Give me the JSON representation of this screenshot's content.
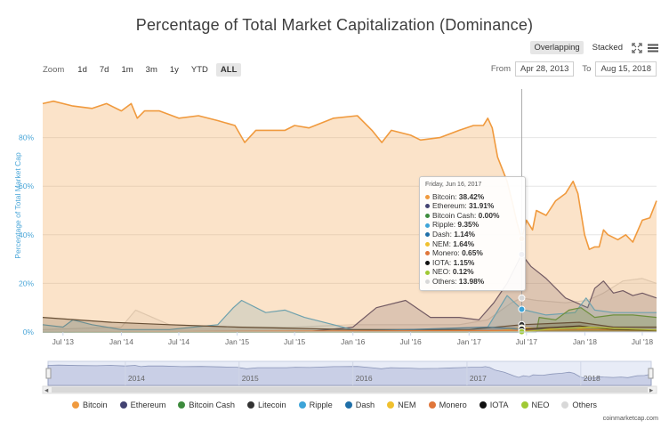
{
  "title": "Percentage of Total Market Capitalization (Dominance)",
  "modes": [
    {
      "label": "Overlapping",
      "active": true
    },
    {
      "label": "Stacked",
      "active": false
    }
  ],
  "zoom": {
    "label": "Zoom",
    "buttons": [
      {
        "label": "1d",
        "active": false
      },
      {
        "label": "7d",
        "active": false
      },
      {
        "label": "1m",
        "active": false
      },
      {
        "label": "3m",
        "active": false
      },
      {
        "label": "1y",
        "active": false
      },
      {
        "label": "YTD",
        "active": false
      },
      {
        "label": "ALL",
        "active": true
      }
    ]
  },
  "range": {
    "from_label": "From",
    "from_value": "Apr 28, 2013",
    "to_label": "To",
    "to_value": "Aug 15, 2018"
  },
  "colors": {
    "Bitcoin": "#f09a3e",
    "Ethereum": "#434372",
    "Bitcoin Cash": "#3d8b3d",
    "Litecoin": "#333333",
    "Ripple": "#3da4d8",
    "Dash": "#1f6fa8",
    "NEM": "#f0c02e",
    "Monero": "#e0763a",
    "IOTA": "#111111",
    "NEO": "#a0c934",
    "Others": "#d8d8d8"
  },
  "tooltip": {
    "date": "Friday, Jun 16, 2017",
    "rows": [
      {
        "name": "Bitcoin",
        "value": "38.42%"
      },
      {
        "name": "Ethereum",
        "value": "31.91%"
      },
      {
        "name": "Bitcoin Cash",
        "value": "0.00%"
      },
      {
        "name": "Ripple",
        "value": "9.35%"
      },
      {
        "name": "Dash",
        "value": "1.14%"
      },
      {
        "name": "NEM",
        "value": "1.64%"
      },
      {
        "name": "Monero",
        "value": "0.65%"
      },
      {
        "name": "IOTA",
        "value": "1.15%"
      },
      {
        "name": "NEO",
        "value": "0.12%"
      },
      {
        "name": "Others",
        "value": "13.98%"
      }
    ]
  },
  "navigator": {
    "years": [
      "2014",
      "2015",
      "2016",
      "2017",
      "2018"
    ]
  },
  "watermark": "coinmarketcap.com",
  "chart_data": {
    "type": "area",
    "ylabel": "Percentage of Total Market Cap",
    "ylim": [
      0,
      100
    ],
    "yticks": [
      0,
      20,
      40,
      60,
      80
    ],
    "ytick_labels": [
      "0%",
      "20%",
      "40%",
      "60%",
      "80%"
    ],
    "xlim": [
      "2013-04-28",
      "2018-08-15"
    ],
    "xticks": [
      {
        "date": "2013-07-01",
        "label": "Jul '13"
      },
      {
        "date": "2014-01-01",
        "label": "Jan '14"
      },
      {
        "date": "2014-07-01",
        "label": "Jul '14"
      },
      {
        "date": "2015-01-01",
        "label": "Jan '15"
      },
      {
        "date": "2015-07-01",
        "label": "Jul '15"
      },
      {
        "date": "2016-01-01",
        "label": "Jan '16"
      },
      {
        "date": "2016-07-01",
        "label": "Jul '16"
      },
      {
        "date": "2017-01-01",
        "label": "Jan '17"
      },
      {
        "date": "2017-07-01",
        "label": "Jul '17"
      },
      {
        "date": "2018-01-01",
        "label": "Jan '18"
      },
      {
        "date": "2018-07-01",
        "label": "Jul '18"
      }
    ],
    "crosshair_date": "2017-06-16",
    "legend_position": "bottom",
    "series": [
      {
        "name": "Others",
        "x": [
          "2013-04-28",
          "2014-01-01",
          "2014-02-15",
          "2014-06-01",
          "2015-01-01",
          "2015-07-01",
          "2016-01-01",
          "2016-06-01",
          "2016-12-01",
          "2017-03-01",
          "2017-05-15",
          "2017-06-16",
          "2017-08-01",
          "2017-11-01",
          "2018-01-10",
          "2018-03-01",
          "2018-05-01",
          "2018-07-01",
          "2018-08-15"
        ],
        "y": [
          1,
          2,
          9,
          3,
          2,
          2,
          3,
          3,
          3,
          5,
          12,
          14,
          13,
          12,
          13,
          16,
          21,
          22,
          20
        ]
      },
      {
        "name": "Ethereum",
        "x": [
          "2013-04-28",
          "2015-08-01",
          "2016-01-01",
          "2016-03-15",
          "2016-06-15",
          "2016-09-01",
          "2016-12-01",
          "2017-02-01",
          "2017-03-20",
          "2017-05-01",
          "2017-06-16",
          "2017-07-15",
          "2017-09-01",
          "2017-11-01",
          "2018-01-10",
          "2018-02-01",
          "2018-03-01",
          "2018-04-01",
          "2018-05-01",
          "2018-06-01",
          "2018-07-01",
          "2018-08-15"
        ],
        "y": [
          0,
          0,
          2,
          10,
          13,
          6,
          6,
          5,
          12,
          20,
          31.9,
          27,
          22,
          14,
          10,
          18,
          21,
          16,
          17,
          15,
          16,
          14
        ]
      },
      {
        "name": "Ripple",
        "x": [
          "2013-04-28",
          "2013-07-01",
          "2013-08-01",
          "2013-10-01",
          "2014-01-01",
          "2014-06-01",
          "2014-11-01",
          "2014-12-20",
          "2015-01-15",
          "2015-04-01",
          "2015-06-01",
          "2015-08-01",
          "2016-01-01",
          "2016-07-01",
          "2017-01-01",
          "2017-03-01",
          "2017-05-01",
          "2017-06-16",
          "2017-09-01",
          "2017-12-01",
          "2018-01-05",
          "2018-02-01",
          "2018-04-01",
          "2018-08-15"
        ],
        "y": [
          3,
          2,
          5,
          3,
          1,
          1,
          3,
          10,
          13,
          8,
          9,
          6,
          1,
          1,
          1,
          2,
          15,
          9.35,
          7,
          8,
          14,
          9,
          8,
          8
        ]
      },
      {
        "name": "Bitcoin Cash",
        "x": [
          "2013-04-28",
          "2017-08-01",
          "2017-08-10",
          "2017-10-01",
          "2017-11-12",
          "2017-12-20",
          "2018-02-01",
          "2018-04-01",
          "2018-06-01",
          "2018-08-15"
        ],
        "y": [
          0,
          0,
          6,
          5,
          9,
          10,
          6,
          7,
          7,
          6
        ]
      },
      {
        "name": "Litecoin",
        "x": [
          "2013-04-28",
          "2013-12-01",
          "2014-06-01",
          "2015-01-01",
          "2016-01-01",
          "2017-01-01",
          "2017-06-16",
          "2017-12-15",
          "2018-04-01",
          "2018-08-15"
        ],
        "y": [
          6,
          4,
          3,
          2,
          1,
          1,
          3,
          4,
          2,
          2
        ]
      },
      {
        "name": "NEM",
        "x": [
          "2013-04-28",
          "2017-03-01",
          "2017-06-16",
          "2017-12-01",
          "2018-01-10",
          "2018-04-01",
          "2018-08-15"
        ],
        "y": [
          0,
          0,
          1.64,
          1,
          2,
          1,
          0.5
        ]
      },
      {
        "name": "Dash",
        "x": [
          "2013-04-28",
          "2016-01-01",
          "2017-03-01",
          "2017-06-16",
          "2017-12-01",
          "2018-04-01",
          "2018-08-15"
        ],
        "y": [
          0,
          0.3,
          2,
          1.14,
          1,
          1,
          0.5
        ]
      },
      {
        "name": "Monero",
        "x": [
          "2013-04-28",
          "2016-08-01",
          "2017-06-16",
          "2018-01-01",
          "2018-08-15"
        ],
        "y": [
          0,
          0.5,
          0.65,
          1,
          0.7
        ]
      },
      {
        "name": "IOTA",
        "x": [
          "2013-04-28",
          "2017-06-13",
          "2017-06-16",
          "2017-12-15",
          "2018-04-01",
          "2018-08-15"
        ],
        "y": [
          0,
          0,
          1.15,
          2.5,
          1,
          0.7
        ]
      },
      {
        "name": "NEO",
        "x": [
          "2013-04-28",
          "2017-03-01",
          "2017-06-16",
          "2017-09-01",
          "2018-01-15",
          "2018-08-15"
        ],
        "y": [
          0,
          0,
          0.12,
          1,
          2,
          0.8
        ]
      },
      {
        "name": "Bitcoin",
        "x": [
          "2013-04-28",
          "2013-06-01",
          "2013-08-01",
          "2013-10-01",
          "2013-11-15",
          "2014-01-01",
          "2014-02-01",
          "2014-02-20",
          "2014-03-15",
          "2014-05-01",
          "2014-07-01",
          "2014-09-01",
          "2014-11-01",
          "2014-12-25",
          "2015-01-25",
          "2015-03-01",
          "2015-06-01",
          "2015-07-01",
          "2015-08-15",
          "2015-11-01",
          "2016-01-15",
          "2016-03-01",
          "2016-04-01",
          "2016-05-01",
          "2016-07-01",
          "2016-08-01",
          "2016-10-01",
          "2016-12-01",
          "2017-01-15",
          "2017-02-15",
          "2017-03-01",
          "2017-03-15",
          "2017-04-01",
          "2017-05-01",
          "2017-05-20",
          "2017-06-01",
          "2017-06-16",
          "2017-07-01",
          "2017-07-20",
          "2017-08-01",
          "2017-09-01",
          "2017-10-01",
          "2017-11-01",
          "2017-11-25",
          "2017-12-10",
          "2017-12-31",
          "2018-01-15",
          "2018-02-01",
          "2018-02-15",
          "2018-03-01",
          "2018-03-15",
          "2018-04-15",
          "2018-05-10",
          "2018-06-01",
          "2018-07-01",
          "2018-07-25",
          "2018-08-15"
        ],
        "y": [
          94,
          95,
          93,
          92,
          94,
          91,
          94,
          88,
          91,
          91,
          88,
          89,
          87,
          85,
          78,
          83,
          83,
          85,
          84,
          88,
          89,
          83,
          78,
          83,
          81,
          79,
          80,
          83,
          85,
          85,
          88,
          84,
          72,
          62,
          52,
          45,
          38.4,
          46,
          42,
          50,
          48,
          54,
          57,
          62,
          57,
          40,
          34,
          35,
          35,
          42,
          40,
          38,
          40,
          37,
          46,
          47,
          54
        ]
      }
    ]
  }
}
